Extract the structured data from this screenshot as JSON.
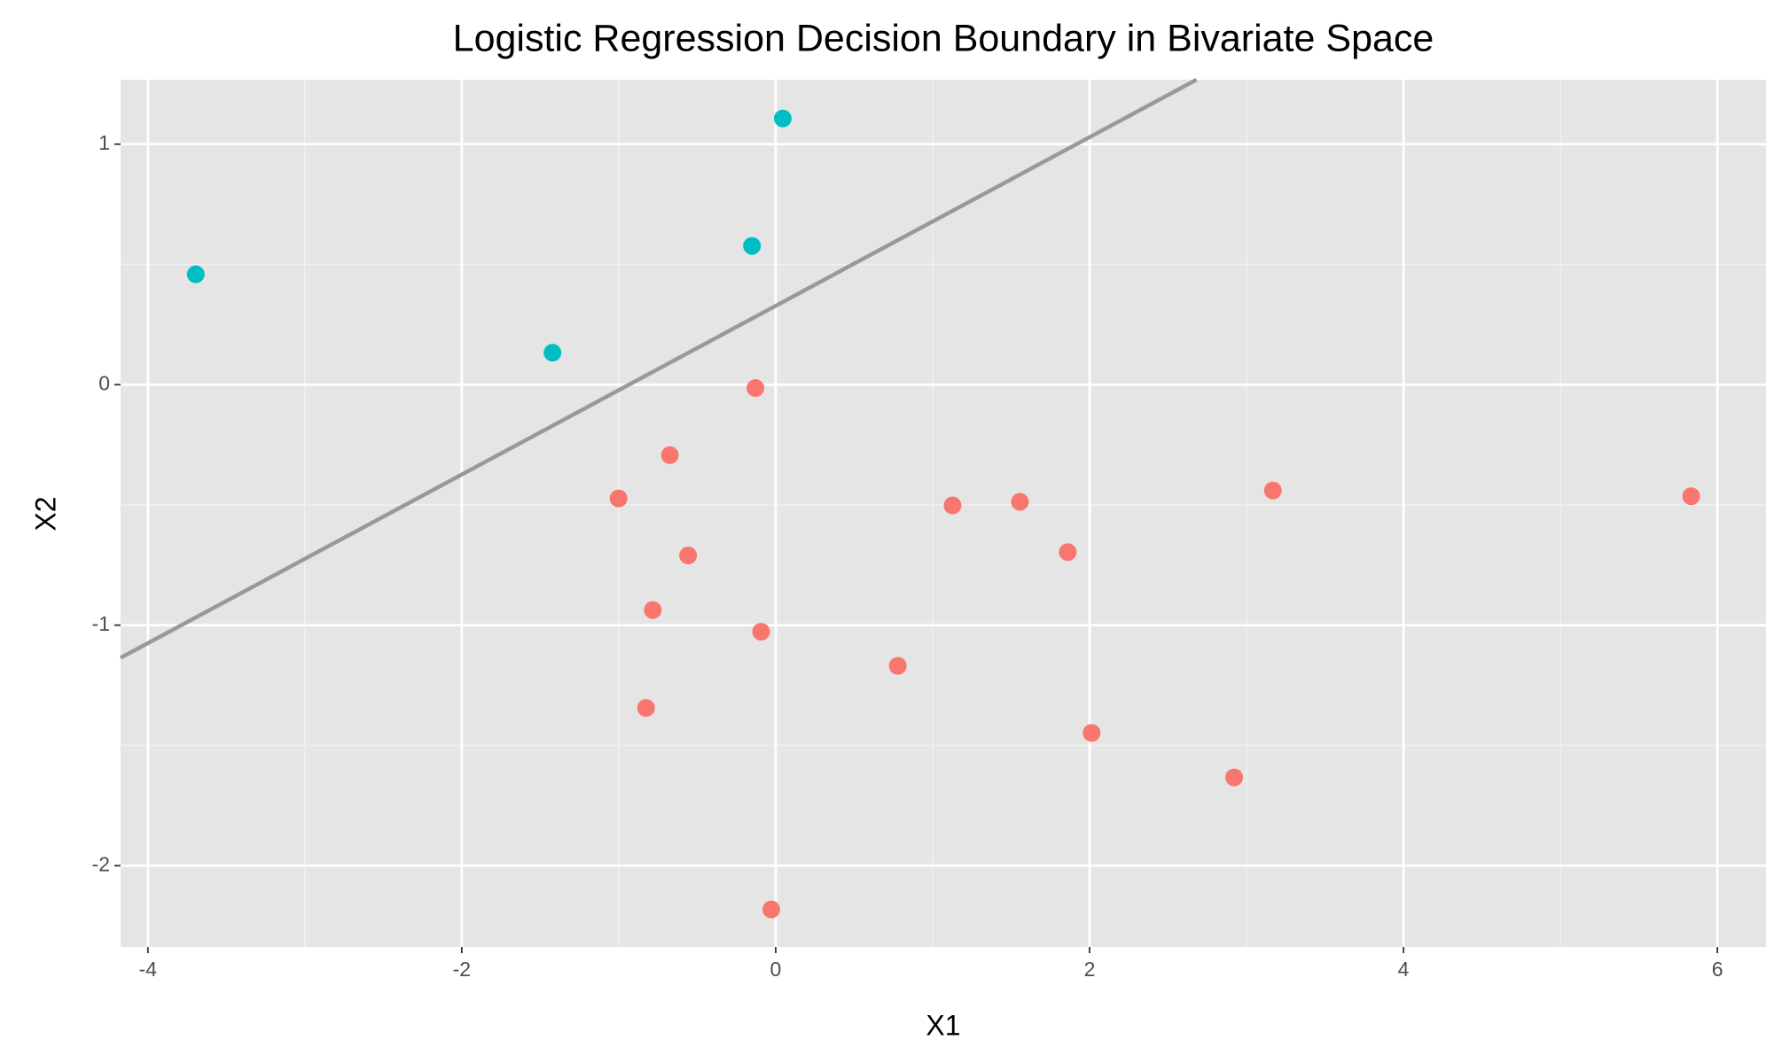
{
  "chart_data": {
    "type": "scatter",
    "title": "Logistic Regression Decision Boundary in Bivariate Space",
    "x_label": "X1",
    "y_label": "X2",
    "xlim": [
      -4.174,
      6.31
    ],
    "ylim": [
      -2.338,
      1.268
    ],
    "xticks": [
      -4,
      -2,
      0,
      2,
      4,
      6
    ],
    "yticks": [
      -2,
      -1,
      0,
      1
    ],
    "grid": true,
    "series": [
      {
        "color": "#00bfc4",
        "x": [
          -3.695,
          -1.422,
          -0.151,
          0.045
        ],
        "values": [
          0.459,
          0.133,
          0.577,
          1.107
        ]
      },
      {
        "color": "#f8766d",
        "x": [
          -0.129,
          -0.674,
          -1.001,
          -0.558,
          -0.783,
          -0.093,
          -0.826,
          -0.028,
          0.778,
          1.127,
          1.556,
          1.861,
          2.013,
          2.921,
          3.168,
          5.833
        ],
        "values": [
          -0.014,
          -0.293,
          -0.473,
          -0.71,
          -0.937,
          -1.027,
          -1.344,
          -2.182,
          -1.169,
          -0.502,
          -0.487,
          -0.696,
          -1.448,
          -1.633,
          -0.44,
          -0.464
        ]
      }
    ],
    "boundary": {
      "color": "#999999",
      "x": [
        -4.174,
        2.681
      ],
      "values": [
        -1.136,
        1.268
      ]
    }
  }
}
